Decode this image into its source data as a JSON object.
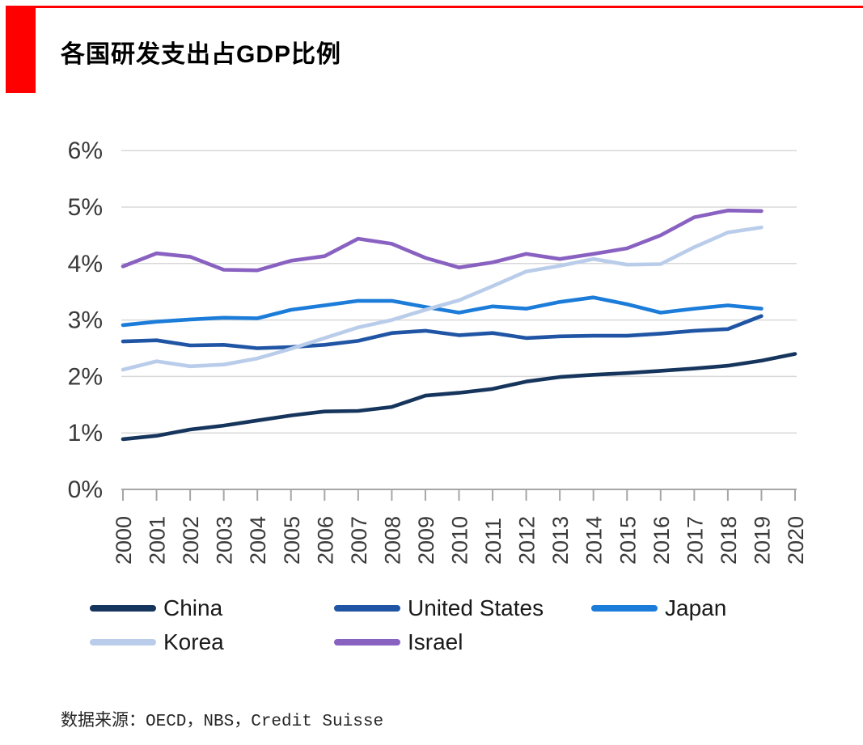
{
  "page": {
    "title": "各国研发支出占GDP比例",
    "source": "数据来源：OECD，NBS，Credit Suisse",
    "accent_color": "#FE0000"
  },
  "chart_data": {
    "type": "line",
    "title": "各国研发支出占GDP比例",
    "xlabel": "",
    "ylabel": "",
    "ylim": [
      0,
      6
    ],
    "y_tick_labels": [
      "0%",
      "1%",
      "2%",
      "3%",
      "4%",
      "5%",
      "6%"
    ],
    "grid": "horizontal",
    "legend_position": "bottom",
    "x": [
      "2000",
      "2001",
      "2002",
      "2003",
      "2004",
      "2005",
      "2006",
      "2007",
      "2008",
      "2009",
      "2010",
      "2011",
      "2012",
      "2013",
      "2014",
      "2015",
      "2016",
      "2017",
      "2018",
      "2019",
      "2020"
    ],
    "series": [
      {
        "name": "China",
        "color": "#16355C",
        "values": [
          0.89,
          0.95,
          1.06,
          1.13,
          1.22,
          1.31,
          1.38,
          1.39,
          1.46,
          1.66,
          1.71,
          1.78,
          1.91,
          1.99,
          2.03,
          2.06,
          2.1,
          2.14,
          2.19,
          2.28,
          2.4
        ]
      },
      {
        "name": "United States",
        "color": "#1F55A4",
        "values": [
          2.62,
          2.64,
          2.55,
          2.56,
          2.5,
          2.52,
          2.56,
          2.63,
          2.77,
          2.81,
          2.73,
          2.77,
          2.68,
          2.71,
          2.72,
          2.72,
          2.76,
          2.81,
          2.84,
          3.07
        ]
      },
      {
        "name": "Japan",
        "color": "#1C7CD9",
        "values": [
          2.91,
          2.97,
          3.01,
          3.04,
          3.03,
          3.18,
          3.26,
          3.34,
          3.34,
          3.23,
          3.13,
          3.24,
          3.2,
          3.32,
          3.4,
          3.28,
          3.13,
          3.2,
          3.26,
          3.2
        ]
      },
      {
        "name": "Korea",
        "color": "#B9CDEA",
        "values": [
          2.12,
          2.27,
          2.18,
          2.21,
          2.32,
          2.49,
          2.68,
          2.87,
          3.0,
          3.18,
          3.35,
          3.6,
          3.86,
          3.96,
          4.08,
          3.98,
          3.99,
          4.29,
          4.55,
          4.64
        ]
      },
      {
        "name": "Israel",
        "color": "#8961C1",
        "values": [
          3.95,
          4.18,
          4.12,
          3.89,
          3.88,
          4.05,
          4.13,
          4.44,
          4.35,
          4.1,
          3.93,
          4.02,
          4.17,
          4.08,
          4.17,
          4.27,
          4.5,
          4.82,
          4.94,
          4.93
        ]
      }
    ]
  }
}
